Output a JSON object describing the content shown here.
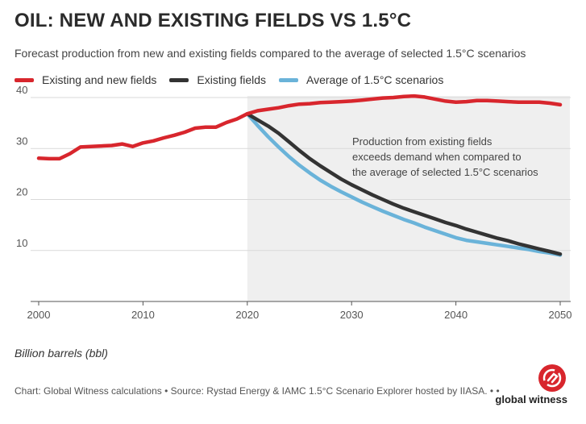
{
  "header": {
    "title": "OIL: NEW AND EXISTING FIELDS VS 1.5°C",
    "subtitle": "Forecast production from new and existing fields compared to the average of selected 1.5°C scenarios"
  },
  "colors": {
    "existing_and_new": "#d8262d",
    "existing": "#333333",
    "average_15c": "#6ab3d9",
    "shaded_region": "#efefef",
    "brand": "#d8262d"
  },
  "chart_data": {
    "type": "line",
    "title": "OIL: NEW AND EXISTING FIELDS VS 1.5°C",
    "subtitle": "Forecast production from new and existing fields compared to the average of selected 1.5°C scenarios",
    "xlabel": "",
    "ylabel": "Billion barrels (bbl)",
    "xlim": [
      2000,
      2050
    ],
    "ylim": [
      0,
      40
    ],
    "x_ticks": [
      2000,
      2010,
      2020,
      2030,
      2040,
      2050
    ],
    "y_ticks": [
      10,
      20,
      30,
      40
    ],
    "grid": "horizontal",
    "legend_position": "top-left",
    "shaded_range": [
      2020,
      2050
    ],
    "annotation": "Production from existing fields exceeds demand when compared to the average of selected 1.5°C scenarios",
    "annotation_lines": [
      "Production from existing fields",
      "exceeds demand when compared to",
      "the average of selected 1.5°C scenarios"
    ],
    "series": [
      {
        "name": "Existing and new fields",
        "x": [
          2000,
          2001,
          2002,
          2003,
          2004,
          2005,
          2006,
          2007,
          2008,
          2009,
          2010,
          2011,
          2012,
          2013,
          2014,
          2015,
          2016,
          2017,
          2018,
          2019,
          2020,
          2021,
          2022,
          2023,
          2024,
          2025,
          2026,
          2027,
          2028,
          2029,
          2030,
          2031,
          2032,
          2033,
          2034,
          2035,
          2036,
          2037,
          2038,
          2039,
          2040,
          2041,
          2042,
          2043,
          2044,
          2045,
          2046,
          2047,
          2048,
          2049,
          2050
        ],
        "values": [
          28.1,
          28.0,
          28.0,
          29.0,
          30.3,
          30.4,
          30.5,
          30.6,
          30.9,
          30.4,
          31.1,
          31.5,
          32.1,
          32.6,
          33.2,
          34.0,
          34.2,
          34.2,
          35.1,
          35.8,
          36.8,
          37.4,
          37.7,
          38.0,
          38.4,
          38.7,
          38.8,
          39.0,
          39.1,
          39.2,
          39.3,
          39.5,
          39.7,
          39.9,
          40.0,
          40.2,
          40.3,
          40.1,
          39.7,
          39.3,
          39.1,
          39.2,
          39.4,
          39.4,
          39.3,
          39.2,
          39.1,
          39.1,
          39.1,
          38.9,
          38.6
        ]
      },
      {
        "name": "Existing fields",
        "x": [
          2020,
          2021,
          2022,
          2023,
          2024,
          2025,
          2026,
          2027,
          2028,
          2029,
          2030,
          2031,
          2032,
          2033,
          2034,
          2035,
          2036,
          2037,
          2038,
          2039,
          2040,
          2041,
          2042,
          2043,
          2044,
          2045,
          2046,
          2047,
          2048,
          2049,
          2050
        ],
        "values": [
          36.8,
          35.6,
          34.4,
          33.0,
          31.3,
          29.6,
          28.0,
          26.6,
          25.3,
          24.0,
          22.9,
          21.9,
          20.9,
          20.0,
          19.1,
          18.3,
          17.6,
          16.9,
          16.2,
          15.5,
          14.9,
          14.2,
          13.6,
          13.0,
          12.4,
          11.9,
          11.3,
          10.8,
          10.3,
          9.8,
          9.3
        ]
      },
      {
        "name": "Average of 1.5°C scenarios",
        "x": [
          2020,
          2021,
          2022,
          2023,
          2024,
          2025,
          2026,
          2027,
          2028,
          2029,
          2030,
          2031,
          2032,
          2033,
          2034,
          2035,
          2036,
          2037,
          2038,
          2039,
          2040,
          2041,
          2042,
          2043,
          2044,
          2045,
          2046,
          2047,
          2048,
          2049,
          2050
        ],
        "values": [
          36.8,
          34.5,
          32.3,
          30.3,
          28.4,
          26.7,
          25.2,
          23.8,
          22.6,
          21.5,
          20.5,
          19.5,
          18.6,
          17.7,
          16.9,
          16.1,
          15.4,
          14.6,
          13.9,
          13.2,
          12.5,
          12.0,
          11.7,
          11.4,
          11.1,
          10.8,
          10.5,
          10.2,
          9.8,
          9.5,
          9.1
        ]
      }
    ]
  },
  "footer": {
    "unit_label": "Billion barrels (bbl)",
    "source": "Chart: Global Witness calculations • Source: Rystad Energy & IAMC 1.5°C Scenario Explorer hosted by IIASA. • •",
    "logo_text": "global witness"
  }
}
